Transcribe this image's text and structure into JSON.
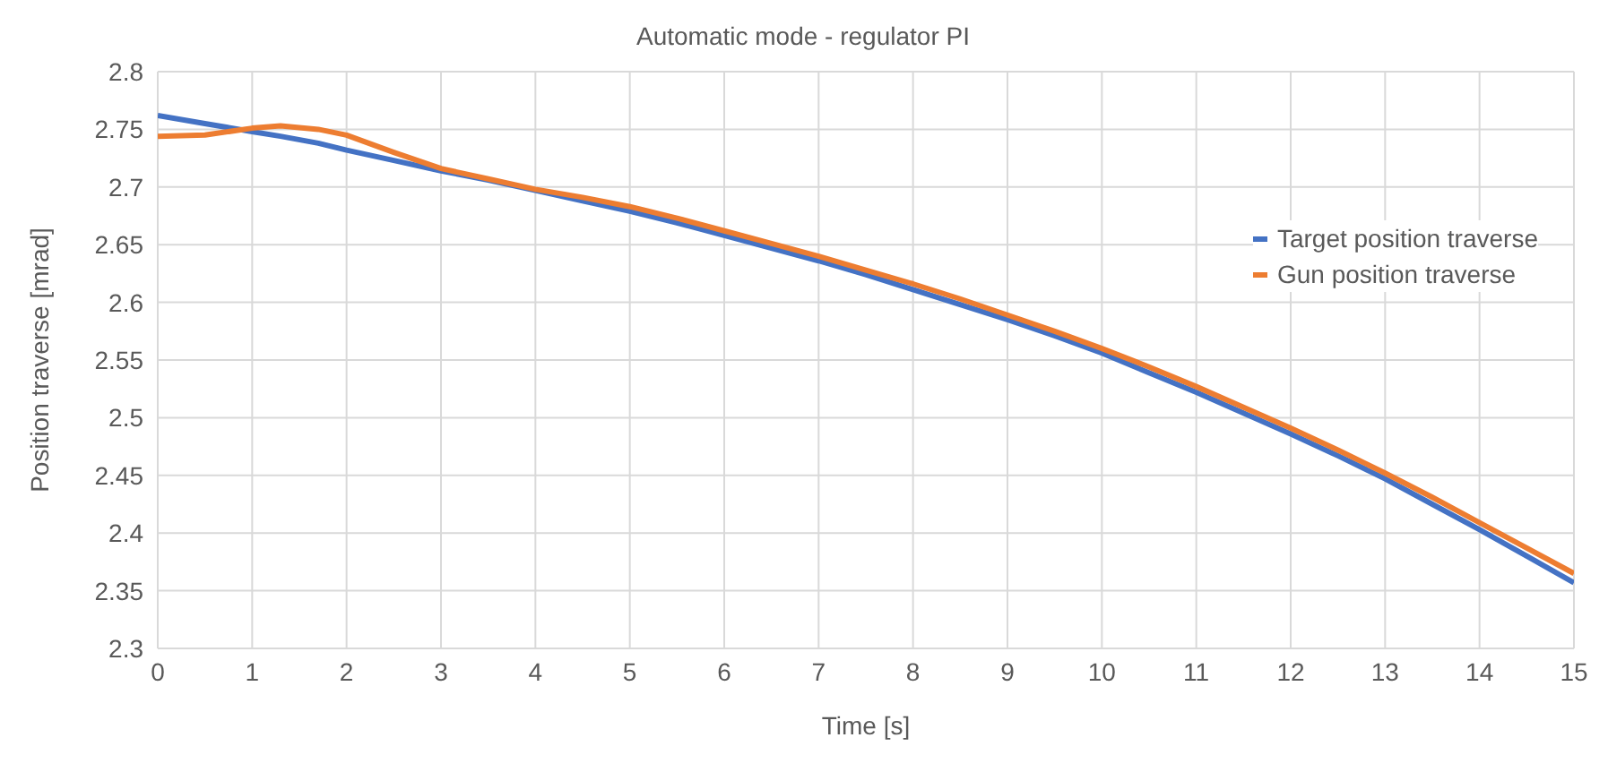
{
  "chart_data": {
    "type": "line",
    "title": "Automatic mode - regulator PI",
    "xlabel": "Time [s]",
    "ylabel": "Position traverse [mrad]",
    "x": [
      0,
      0.5,
      1,
      1.3,
      1.7,
      2,
      2.5,
      3,
      3.5,
      4,
      4.5,
      5,
      5.5,
      6,
      6.5,
      7,
      7.5,
      8,
      8.5,
      9,
      9.5,
      10,
      10.5,
      11,
      11.5,
      12,
      12.5,
      13,
      13.5,
      14,
      14.5,
      15
    ],
    "series": [
      {
        "name": "Target position traverse",
        "color": "#4472c4",
        "values": [
          2.762,
          2.755,
          2.748,
          2.744,
          2.738,
          2.732,
          2.723,
          2.714,
          2.706,
          2.697,
          2.688,
          2.679,
          2.669,
          2.658,
          2.647,
          2.636,
          2.624,
          2.611,
          2.598,
          2.585,
          2.571,
          2.556,
          2.539,
          2.522,
          2.504,
          2.486,
          2.467,
          2.447,
          2.425,
          2.403,
          2.38,
          2.357
        ]
      },
      {
        "name": "Gun position traverse",
        "color": "#ed7d31",
        "values": [
          2.744,
          2.745,
          2.751,
          2.753,
          2.75,
          2.745,
          2.73,
          2.716,
          2.707,
          2.698,
          2.691,
          2.683,
          2.673,
          2.662,
          2.651,
          2.64,
          2.628,
          2.616,
          2.603,
          2.589,
          2.575,
          2.56,
          2.544,
          2.527,
          2.509,
          2.491,
          2.472,
          2.452,
          2.431,
          2.409,
          2.387,
          2.365
        ]
      }
    ],
    "xlim": [
      0,
      15
    ],
    "xticks": [
      0,
      1,
      2,
      3,
      4,
      5,
      6,
      7,
      8,
      9,
      10,
      11,
      12,
      13,
      14,
      15
    ],
    "ylim": [
      2.3,
      2.8
    ],
    "yticks": [
      2.3,
      2.35,
      2.4,
      2.45,
      2.5,
      2.55,
      2.6,
      2.65,
      2.7,
      2.75,
      2.8
    ],
    "grid": true,
    "legend": "right",
    "marker": "none",
    "line_style": "solid"
  }
}
